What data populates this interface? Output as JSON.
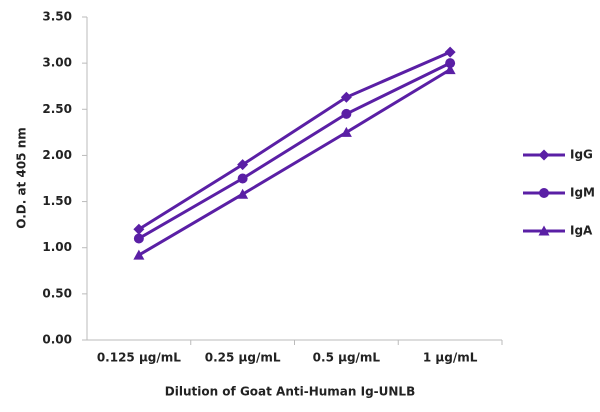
{
  "chart_data": {
    "type": "line",
    "x_label": "Dilution of Goat Anti-Human Ig-UNLB",
    "y_label": "O.D. at 405 nm",
    "categories": [
      "0.125 µg/mL",
      "0.25 µg/mL",
      "0.5 µg/mL",
      "1 µg/mL"
    ],
    "series": [
      {
        "name": "IgG",
        "color": "#5a1fa5",
        "marker": "diamond",
        "values": [
          1.2,
          1.9,
          2.63,
          3.12
        ]
      },
      {
        "name": "IgM",
        "color": "#5a1fa5",
        "marker": "circle",
        "values": [
          1.1,
          1.75,
          2.45,
          3.0
        ]
      },
      {
        "name": "IgA",
        "color": "#5a1fa5",
        "marker": "triangle",
        "values": [
          0.92,
          1.58,
          2.25,
          2.93
        ]
      }
    ],
    "ylim": [
      0,
      3.5
    ],
    "yticks": [
      {
        "value": 0,
        "label": "0.00"
      },
      {
        "value": 0.5,
        "label": "0.50"
      },
      {
        "value": 1,
        "label": "1.00"
      },
      {
        "value": 1.5,
        "label": "1.50"
      },
      {
        "value": 2,
        "label": "2.00"
      },
      {
        "value": 2.5,
        "label": "2.50"
      },
      {
        "value": 3,
        "label": "3.00"
      },
      {
        "value": 3.5,
        "label": "3.50"
      }
    ],
    "grid": false,
    "legend": "right"
  }
}
